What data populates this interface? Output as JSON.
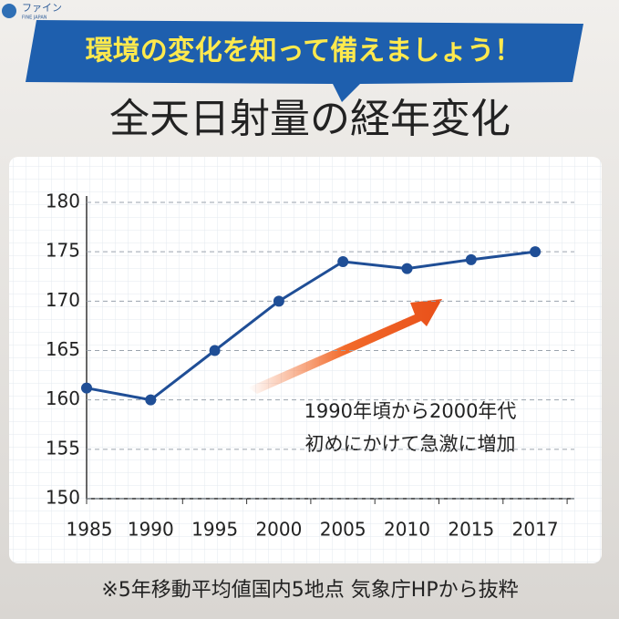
{
  "header": {
    "logo": "ファイン",
    "logo_sub": "FINE JAPAN",
    "banner": "環境の変化を知って備えましょう！"
  },
  "chart_data": {
    "type": "line",
    "title": "全天日射量の経年変化",
    "categories": [
      "1985",
      "1990",
      "1995",
      "2000",
      "2005",
      "2010",
      "2015",
      "2017"
    ],
    "series": [
      {
        "name": "全天日射量",
        "color": "#1f4e96",
        "values": [
          161.2,
          160,
          165,
          170,
          174,
          173.3,
          174.2,
          175
        ]
      }
    ],
    "ylim": [
      150,
      180
    ],
    "yticks": [
      150,
      155,
      160,
      165,
      170,
      175,
      180
    ],
    "grid": true,
    "annotations": [
      "1990年頃から2000年代",
      "初めにかけて急激に増加"
    ]
  },
  "footnote": "※5年移動平均値国内5地点 気象庁HPから抜粋"
}
